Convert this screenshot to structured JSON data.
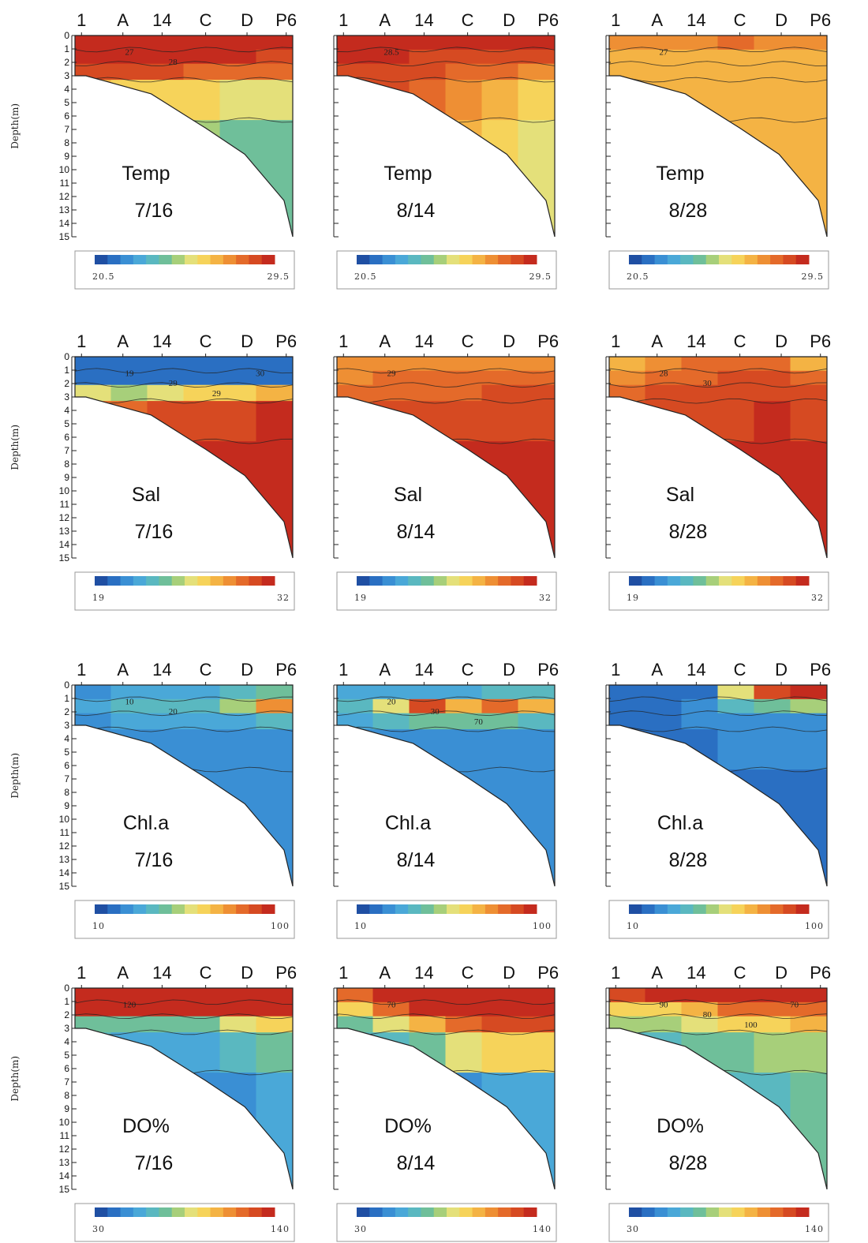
{
  "figure": {
    "stations": [
      "1",
      "A",
      "14",
      "C",
      "D",
      "P6"
    ],
    "depth_axis_label": "Depth(m)",
    "depth_ticks": [
      "0",
      "1",
      "2",
      "3",
      "4",
      "5",
      "6",
      "7",
      "8",
      "9",
      "10",
      "11",
      "12",
      "13",
      "14",
      "15"
    ]
  },
  "colors": {
    "scale": [
      "#1f4fa3",
      "#2a6fc2",
      "#3a8fd4",
      "#4aa8d8",
      "#5ab8c0",
      "#6fbf9a",
      "#a7cf7a",
      "#e4e07a",
      "#f6d35a",
      "#f4b344",
      "#ee8f34",
      "#e46a2a",
      "#d64a22",
      "#c42b1e"
    ]
  },
  "chart_data": [
    {
      "type": "heatmap",
      "panel": "temp-7-16",
      "variable": "Temp",
      "date": "7/16",
      "x": [
        "1",
        "A",
        "14",
        "C",
        "D",
        "P6"
      ],
      "y_range": [
        0,
        15
      ],
      "colorbar": {
        "min": "20.5",
        "max": "29.5"
      },
      "contour_labels": [
        "27",
        "28"
      ],
      "cols": [
        [
          0.98,
          0.98,
          0.9,
          0.68,
          0.6
        ],
        [
          0.97,
          0.96,
          0.88,
          0.62,
          0.55
        ],
        [
          0.98,
          0.95,
          0.86,
          0.6,
          0.5
        ],
        [
          0.97,
          0.95,
          0.85,
          0.58,
          0.45
        ],
        [
          0.98,
          0.94,
          0.82,
          0.55,
          0.42
        ],
        [
          0.97,
          0.92,
          0.8,
          0.52,
          0.4
        ]
      ]
    },
    {
      "type": "heatmap",
      "panel": "temp-8-14",
      "variable": "Temp",
      "date": "8/14",
      "x": [
        "1",
        "A",
        "14",
        "C",
        "D",
        "P6"
      ],
      "y_range": [
        0,
        15
      ],
      "colorbar": {
        "min": "20.5",
        "max": "29.5"
      },
      "contour_labels": [
        "28.5"
      ],
      "cols": [
        [
          0.96,
          0.93,
          0.9,
          0.88,
          0.86
        ],
        [
          0.96,
          0.93,
          0.9,
          0.88,
          0.85
        ],
        [
          0.95,
          0.92,
          0.88,
          0.84,
          0.8
        ],
        [
          0.95,
          0.9,
          0.84,
          0.74,
          0.66
        ],
        [
          0.95,
          0.9,
          0.8,
          0.66,
          0.58
        ],
        [
          0.95,
          0.9,
          0.78,
          0.62,
          0.55
        ]
      ]
    },
    {
      "type": "heatmap",
      "panel": "temp-8-28",
      "variable": "Temp",
      "date": "8/28",
      "x": [
        "1",
        "A",
        "14",
        "C",
        "D",
        "P6"
      ],
      "y_range": [
        0,
        15
      ],
      "colorbar": {
        "min": "20.5",
        "max": "29.5"
      },
      "contour_labels": [
        "27"
      ],
      "cols": [
        [
          0.74,
          0.68,
          0.66,
          0.66,
          0.66
        ],
        [
          0.76,
          0.68,
          0.66,
          0.66,
          0.66
        ],
        [
          0.76,
          0.68,
          0.66,
          0.66,
          0.66
        ],
        [
          0.8,
          0.7,
          0.66,
          0.66,
          0.66
        ],
        [
          0.78,
          0.68,
          0.66,
          0.66,
          0.66
        ],
        [
          0.76,
          0.68,
          0.66,
          0.66,
          0.66
        ]
      ]
    },
    {
      "type": "heatmap",
      "panel": "sal-7-16",
      "variable": "Sal",
      "date": "7/16",
      "x": [
        "1",
        "A",
        "14",
        "C",
        "D",
        "P6"
      ],
      "y_range": [
        0,
        15
      ],
      "colorbar": {
        "min": "19",
        "max": "32"
      },
      "contour_labels": [
        "19",
        "29",
        "29",
        "30"
      ],
      "cols": [
        [
          0.1,
          0.12,
          0.5,
          0.85,
          0.9
        ],
        [
          0.1,
          0.12,
          0.45,
          0.85,
          0.9
        ],
        [
          0.1,
          0.12,
          0.55,
          0.88,
          0.92
        ],
        [
          0.1,
          0.12,
          0.6,
          0.9,
          0.94
        ],
        [
          0.1,
          0.12,
          0.62,
          0.92,
          0.97
        ],
        [
          0.1,
          0.12,
          0.65,
          0.94,
          0.98
        ]
      ]
    },
    {
      "type": "heatmap",
      "panel": "sal-8-14",
      "variable": "Sal",
      "date": "8/14",
      "x": [
        "1",
        "A",
        "14",
        "C",
        "D",
        "P6"
      ],
      "y_range": [
        0,
        15
      ],
      "colorbar": {
        "min": "19",
        "max": "32"
      },
      "contour_labels": [
        "29"
      ],
      "cols": [
        [
          0.75,
          0.78,
          0.8,
          0.82,
          0.84
        ],
        [
          0.76,
          0.8,
          0.84,
          0.86,
          0.88
        ],
        [
          0.77,
          0.8,
          0.84,
          0.88,
          0.9
        ],
        [
          0.77,
          0.8,
          0.85,
          0.9,
          0.93
        ],
        [
          0.78,
          0.82,
          0.86,
          0.92,
          0.96
        ],
        [
          0.78,
          0.82,
          0.86,
          0.92,
          0.96
        ]
      ]
    },
    {
      "type": "heatmap",
      "panel": "sal-8-28",
      "variable": "Sal",
      "date": "8/28",
      "x": [
        "1",
        "A",
        "14",
        "C",
        "D",
        "P6"
      ],
      "y_range": [
        0,
        15
      ],
      "colorbar": {
        "min": "19",
        "max": "32"
      },
      "contour_labels": [
        "28",
        "30"
      ],
      "cols": [
        [
          0.68,
          0.78,
          0.84,
          0.86,
          0.88
        ],
        [
          0.78,
          0.82,
          0.86,
          0.88,
          0.9
        ],
        [
          0.82,
          0.84,
          0.88,
          0.9,
          0.92
        ],
        [
          0.84,
          0.86,
          0.88,
          0.92,
          0.94
        ],
        [
          0.84,
          0.86,
          0.9,
          0.93,
          0.96
        ],
        [
          0.7,
          0.84,
          0.88,
          0.92,
          0.96
        ]
      ]
    },
    {
      "type": "heatmap",
      "panel": "chla-7-16",
      "variable": "Chl.a",
      "date": "7/16",
      "x": [
        "1",
        "A",
        "14",
        "C",
        "D",
        "P6"
      ],
      "y_range": [
        0,
        15
      ],
      "colorbar": {
        "min": "10",
        "max": "100"
      },
      "contour_labels": [
        "10",
        "20"
      ],
      "cols": [
        [
          0.2,
          0.24,
          0.2,
          0.18,
          0.18
        ],
        [
          0.24,
          0.3,
          0.22,
          0.18,
          0.18
        ],
        [
          0.24,
          0.32,
          0.22,
          0.18,
          0.18
        ],
        [
          0.24,
          0.3,
          0.22,
          0.18,
          0.18
        ],
        [
          0.3,
          0.45,
          0.26,
          0.2,
          0.18
        ],
        [
          0.4,
          0.72,
          0.3,
          0.2,
          0.18
        ]
      ]
    },
    {
      "type": "heatmap",
      "panel": "chla-8-14",
      "variable": "Chl.a",
      "date": "8/14",
      "x": [
        "1",
        "A",
        "14",
        "C",
        "D",
        "P6"
      ],
      "y_range": [
        0,
        15
      ],
      "colorbar": {
        "min": "10",
        "max": "100"
      },
      "contour_labels": [
        "20",
        "30",
        "70"
      ],
      "cols": [
        [
          0.22,
          0.3,
          0.25,
          0.18,
          0.15
        ],
        [
          0.25,
          0.55,
          0.3,
          0.18,
          0.15
        ],
        [
          0.28,
          0.9,
          0.4,
          0.2,
          0.15
        ],
        [
          0.28,
          0.7,
          0.4,
          0.2,
          0.15
        ],
        [
          0.3,
          0.82,
          0.4,
          0.2,
          0.15
        ],
        [
          0.3,
          0.65,
          0.35,
          0.2,
          0.15
        ]
      ]
    },
    {
      "type": "heatmap",
      "panel": "chla-8-28",
      "variable": "Chl.a",
      "date": "8/28",
      "x": [
        "1",
        "A",
        "14",
        "C",
        "D",
        "P6"
      ],
      "y_range": [
        0,
        15
      ],
      "colorbar": {
        "min": "10",
        "max": "100"
      },
      "contour_labels": [],
      "cols": [
        [
          0.12,
          0.14,
          0.14,
          0.14,
          0.14
        ],
        [
          0.12,
          0.14,
          0.14,
          0.14,
          0.14
        ],
        [
          0.14,
          0.16,
          0.15,
          0.14,
          0.14
        ],
        [
          0.5,
          0.3,
          0.18,
          0.15,
          0.14
        ],
        [
          0.9,
          0.4,
          0.2,
          0.16,
          0.14
        ],
        [
          0.95,
          0.45,
          0.2,
          0.16,
          0.14
        ]
      ]
    },
    {
      "type": "heatmap",
      "panel": "do-7-16",
      "variable": "DO%",
      "date": "7/16",
      "x": [
        "1",
        "A",
        "14",
        "C",
        "D",
        "P6"
      ],
      "y_range": [
        0,
        15
      ],
      "colorbar": {
        "min": "30",
        "max": "140"
      },
      "contour_labels": [
        "120"
      ],
      "cols": [
        [
          0.98,
          0.95,
          0.4,
          0.3,
          0.2
        ],
        [
          0.98,
          0.95,
          0.38,
          0.26,
          0.18
        ],
        [
          0.98,
          0.95,
          0.36,
          0.24,
          0.16
        ],
        [
          0.98,
          0.95,
          0.4,
          0.28,
          0.18
        ],
        [
          0.98,
          0.95,
          0.5,
          0.34,
          0.2
        ],
        [
          0.98,
          0.95,
          0.6,
          0.38,
          0.22
        ]
      ]
    },
    {
      "type": "heatmap",
      "panel": "do-8-14",
      "variable": "DO%",
      "date": "8/14",
      "x": [
        "1",
        "A",
        "14",
        "C",
        "D",
        "P6"
      ],
      "y_range": [
        0,
        15
      ],
      "colorbar": {
        "min": "30",
        "max": "140"
      },
      "contour_labels": [
        "70"
      ],
      "cols": [
        [
          0.85,
          0.6,
          0.4,
          0.3,
          0.2
        ],
        [
          0.95,
          0.85,
          0.55,
          0.35,
          0.2
        ],
        [
          0.98,
          0.95,
          0.7,
          0.4,
          0.2
        ],
        [
          0.98,
          0.96,
          0.85,
          0.5,
          0.2
        ],
        [
          0.98,
          0.97,
          0.92,
          0.6,
          0.22
        ],
        [
          0.98,
          0.97,
          0.9,
          0.58,
          0.22
        ]
      ]
    },
    {
      "type": "heatmap",
      "panel": "do-8-28",
      "variable": "DO%",
      "date": "8/28",
      "x": [
        "1",
        "A",
        "14",
        "C",
        "D",
        "P6"
      ],
      "y_range": [
        0,
        15
      ],
      "colorbar": {
        "min": "30",
        "max": "140"
      },
      "contour_labels": [
        "90",
        "80",
        "100",
        "70"
      ],
      "cols": [
        [
          0.9,
          0.6,
          0.45,
          0.35,
          0.3
        ],
        [
          0.95,
          0.62,
          0.45,
          0.35,
          0.3
        ],
        [
          0.98,
          0.7,
          0.5,
          0.38,
          0.3
        ],
        [
          0.98,
          0.8,
          0.6,
          0.42,
          0.32
        ],
        [
          0.98,
          0.82,
          0.62,
          0.45,
          0.35
        ],
        [
          0.98,
          0.85,
          0.65,
          0.48,
          0.36
        ]
      ]
    }
  ]
}
